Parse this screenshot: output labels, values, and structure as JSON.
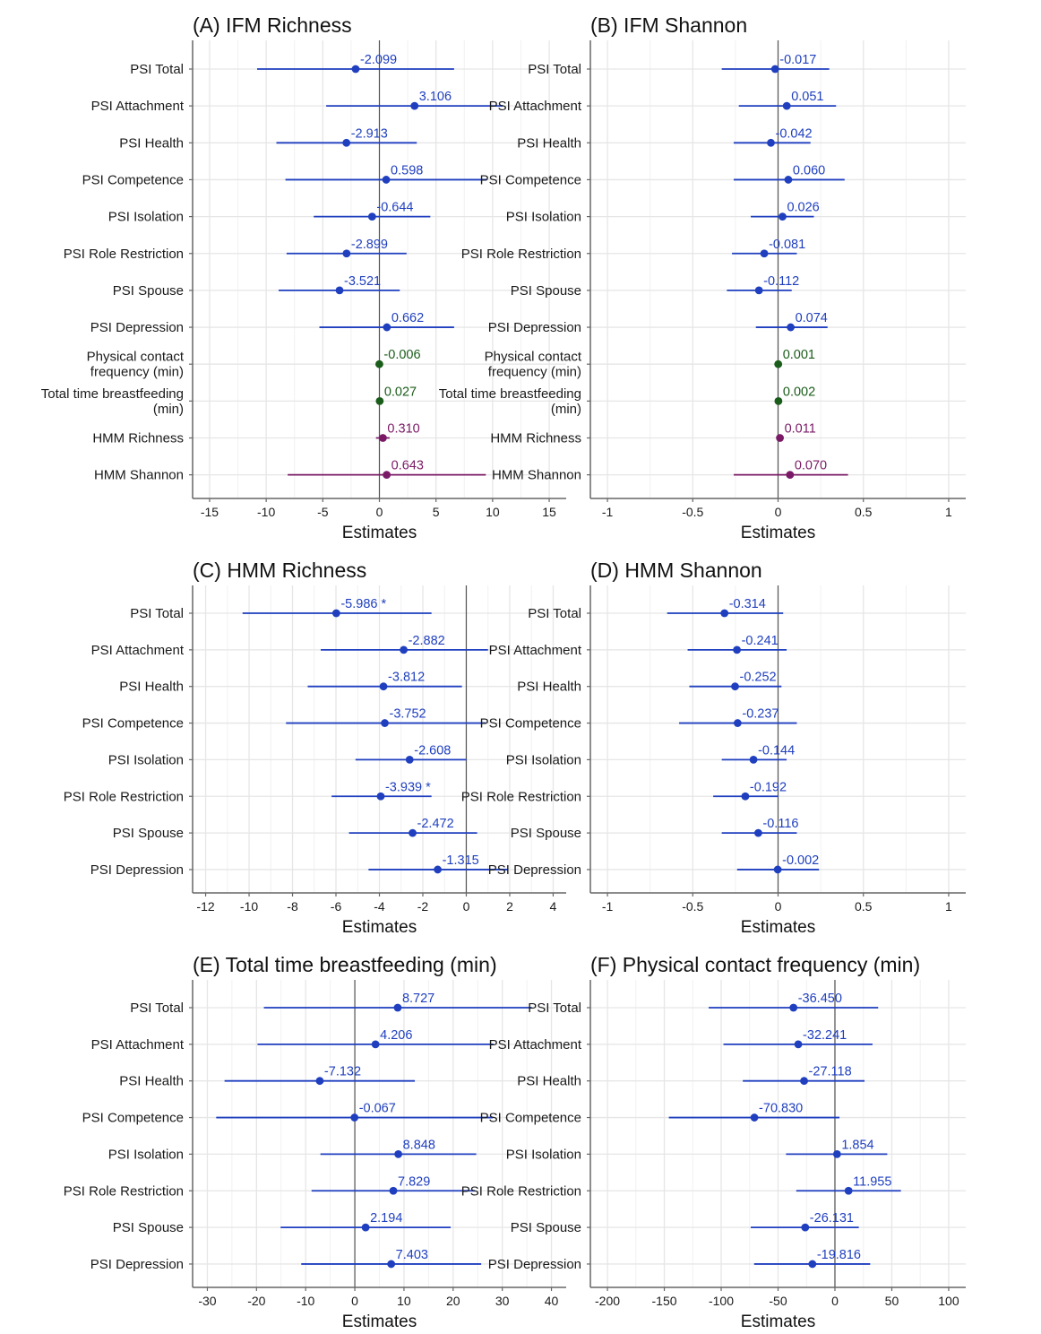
{
  "colors": {
    "psi": "#1f3fbf",
    "behavior": "#1a5c1a",
    "hmm": "#7a1a66",
    "grid": "#e6e6e6",
    "axis": "#666666",
    "zero_line": "#555555"
  },
  "chart_data": [
    {
      "type": "forest",
      "title": "(A) IFM Richness",
      "xlabel": "Estimates",
      "xlim": [
        -16.5,
        16.5
      ],
      "xticks": [
        -15,
        -10,
        -5,
        0,
        5,
        10,
        15
      ],
      "xtick_labels": [
        "-15",
        "-10",
        "-5",
        "0",
        "5",
        "10",
        "15"
      ],
      "rows": [
        {
          "label": "PSI Total",
          "estimate": -2.099,
          "ci": [
            -10.8,
            6.6
          ],
          "text": "-2.099",
          "group": "psi"
        },
        {
          "label": "PSI Attachment",
          "estimate": 3.106,
          "ci": [
            -4.7,
            10.9
          ],
          "text": "3.106",
          "group": "psi"
        },
        {
          "label": "PSI Health",
          "estimate": -2.913,
          "ci": [
            -9.1,
            3.3
          ],
          "text": "-2.913",
          "group": "psi"
        },
        {
          "label": "PSI Competence",
          "estimate": 0.598,
          "ci": [
            -8.3,
            9.5
          ],
          "text": "0.598",
          "group": "psi"
        },
        {
          "label": "PSI Isolation",
          "estimate": -0.644,
          "ci": [
            -5.8,
            4.5
          ],
          "text": "-0.644",
          "group": "psi"
        },
        {
          "label": "PSI Role Restriction",
          "estimate": -2.899,
          "ci": [
            -8.2,
            2.4
          ],
          "text": "-2.899",
          "group": "psi"
        },
        {
          "label": "PSI Spouse",
          "estimate": -3.521,
          "ci": [
            -8.9,
            1.8
          ],
          "text": "-3.521",
          "group": "psi"
        },
        {
          "label": "PSI Depression",
          "estimate": 0.662,
          "ci": [
            -5.3,
            6.6
          ],
          "text": "0.662",
          "group": "psi"
        },
        {
          "label": "Physical contact\nfrequency (min)",
          "estimate": -0.006,
          "ci": [
            -0.1,
            0.1
          ],
          "text": "-0.006",
          "group": "behavior"
        },
        {
          "label": "Total time breastfeeding\n(min)",
          "estimate": 0.027,
          "ci": [
            -0.1,
            0.15
          ],
          "text": "0.027",
          "group": "behavior"
        },
        {
          "label": "HMM Richness",
          "estimate": 0.31,
          "ci": [
            -0.3,
            0.9
          ],
          "text": "0.310",
          "group": "hmm"
        },
        {
          "label": "HMM Shannon",
          "estimate": 0.643,
          "ci": [
            -8.1,
            9.4
          ],
          "text": "0.643",
          "group": "hmm"
        }
      ]
    },
    {
      "type": "forest",
      "title": "(B) IFM Shannon",
      "xlabel": "Estimates",
      "xlim": [
        -1.1,
        1.1
      ],
      "xticks": [
        -1,
        -0.5,
        0,
        0.5,
        1
      ],
      "xtick_labels": [
        "-1",
        "-0.5",
        "0",
        "0.5",
        "1"
      ],
      "rows": [
        {
          "label": "PSI Total",
          "estimate": -0.017,
          "ci": [
            -0.33,
            0.3
          ],
          "text": "-0.017",
          "group": "psi"
        },
        {
          "label": "PSI Attachment",
          "estimate": 0.051,
          "ci": [
            -0.23,
            0.34
          ],
          "text": "0.051",
          "group": "psi"
        },
        {
          "label": "PSI Health",
          "estimate": -0.042,
          "ci": [
            -0.26,
            0.19
          ],
          "text": "-0.042",
          "group": "psi"
        },
        {
          "label": "PSI Competence",
          "estimate": 0.06,
          "ci": [
            -0.26,
            0.39
          ],
          "text": "0.060",
          "group": "psi"
        },
        {
          "label": "PSI Isolation",
          "estimate": 0.026,
          "ci": [
            -0.16,
            0.21
          ],
          "text": "0.026",
          "group": "psi"
        },
        {
          "label": "PSI Role Restriction",
          "estimate": -0.081,
          "ci": [
            -0.27,
            0.11
          ],
          "text": "-0.081",
          "group": "psi"
        },
        {
          "label": "PSI Spouse",
          "estimate": -0.112,
          "ci": [
            -0.3,
            0.08
          ],
          "text": "-0.112",
          "group": "psi"
        },
        {
          "label": "PSI Depression",
          "estimate": 0.074,
          "ci": [
            -0.13,
            0.29
          ],
          "text": "0.074",
          "group": "psi"
        },
        {
          "label": "Physical contact\nfrequency (min)",
          "estimate": 0.001,
          "ci": [
            -0.01,
            0.01
          ],
          "text": "0.001",
          "group": "behavior"
        },
        {
          "label": "Total time breastfeeding\n(min)",
          "estimate": 0.002,
          "ci": [
            -0.01,
            0.01
          ],
          "text": "0.002",
          "group": "behavior"
        },
        {
          "label": "HMM Richness",
          "estimate": 0.011,
          "ci": [
            0.0,
            0.03
          ],
          "text": "0.011",
          "group": "hmm"
        },
        {
          "label": "HMM Shannon",
          "estimate": 0.07,
          "ci": [
            -0.26,
            0.41
          ],
          "text": "0.070",
          "group": "hmm"
        }
      ]
    },
    {
      "type": "forest",
      "title": "(C) HMM Richness",
      "xlabel": "Estimates",
      "xlim": [
        -12.6,
        4.6
      ],
      "xticks": [
        -12,
        -10,
        -8,
        -6,
        -4,
        -2,
        0,
        2,
        4
      ],
      "xtick_labels": [
        "-12",
        "-10",
        "-8",
        "-6",
        "-4",
        "-2",
        "0",
        "2",
        "4"
      ],
      "rows": [
        {
          "label": "PSI Total",
          "estimate": -5.986,
          "ci": [
            -10.3,
            -1.6
          ],
          "text": "-5.986 *",
          "group": "psi"
        },
        {
          "label": "PSI Attachment",
          "estimate": -2.882,
          "ci": [
            -6.7,
            1.0
          ],
          "text": "-2.882",
          "group": "psi"
        },
        {
          "label": "PSI Health",
          "estimate": -3.812,
          "ci": [
            -7.3,
            -0.2
          ],
          "text": "-3.812",
          "group": "psi"
        },
        {
          "label": "PSI Competence",
          "estimate": -3.752,
          "ci": [
            -8.3,
            0.9
          ],
          "text": "-3.752",
          "group": "psi"
        },
        {
          "label": "PSI Isolation",
          "estimate": -2.608,
          "ci": [
            -5.1,
            0.0
          ],
          "text": "-2.608",
          "group": "psi"
        },
        {
          "label": "PSI Role Restriction",
          "estimate": -3.939,
          "ci": [
            -6.2,
            -1.6
          ],
          "text": "-3.939 *",
          "group": "psi"
        },
        {
          "label": "PSI Spouse",
          "estimate": -2.472,
          "ci": [
            -5.4,
            0.5
          ],
          "text": "-2.472",
          "group": "psi"
        },
        {
          "label": "PSI Depression",
          "estimate": -1.315,
          "ci": [
            -4.5,
            1.9
          ],
          "text": "-1.315",
          "group": "psi"
        }
      ]
    },
    {
      "type": "forest",
      "title": "(D) HMM Shannon",
      "xlabel": "Estimates",
      "xlim": [
        -1.1,
        1.1
      ],
      "xticks": [
        -1,
        -0.5,
        0,
        0.5,
        1
      ],
      "xtick_labels": [
        "-1",
        "-0.5",
        "0",
        "0.5",
        "1"
      ],
      "rows": [
        {
          "label": "PSI Total",
          "estimate": -0.314,
          "ci": [
            -0.65,
            0.03
          ],
          "text": "-0.314",
          "group": "psi"
        },
        {
          "label": "PSI Attachment",
          "estimate": -0.241,
          "ci": [
            -0.53,
            0.05
          ],
          "text": "-0.241",
          "group": "psi"
        },
        {
          "label": "PSI Health",
          "estimate": -0.252,
          "ci": [
            -0.52,
            0.02
          ],
          "text": "-0.252",
          "group": "psi"
        },
        {
          "label": "PSI Competence",
          "estimate": -0.237,
          "ci": [
            -0.58,
            0.11
          ],
          "text": "-0.237",
          "group": "psi"
        },
        {
          "label": "PSI Isolation",
          "estimate": -0.144,
          "ci": [
            -0.33,
            0.05
          ],
          "text": "-0.144",
          "group": "psi"
        },
        {
          "label": "PSI Role Restriction",
          "estimate": -0.192,
          "ci": [
            -0.38,
            0.0
          ],
          "text": "-0.192",
          "group": "psi"
        },
        {
          "label": "PSI Spouse",
          "estimate": -0.116,
          "ci": [
            -0.33,
            0.11
          ],
          "text": "-0.116",
          "group": "psi"
        },
        {
          "label": "PSI Depression",
          "estimate": -0.002,
          "ci": [
            -0.24,
            0.24
          ],
          "text": "-0.002",
          "group": "psi"
        }
      ]
    },
    {
      "type": "forest",
      "title": "(E) Total time breastfeeding (min)",
      "xlabel": "Estimates",
      "xlim": [
        -33,
        43
      ],
      "xticks": [
        -30,
        -20,
        -10,
        0,
        10,
        20,
        30,
        40
      ],
      "xtick_labels": [
        "-30",
        "-20",
        "-10",
        "0",
        "10",
        "20",
        "30",
        "40"
      ],
      "rows": [
        {
          "label": "PSI Total",
          "estimate": 8.727,
          "ci": [
            -18.5,
            36.0
          ],
          "text": "8.727",
          "group": "psi"
        },
        {
          "label": "PSI Attachment",
          "estimate": 4.206,
          "ci": [
            -19.8,
            28.2
          ],
          "text": "4.206",
          "group": "psi"
        },
        {
          "label": "PSI Health",
          "estimate": -7.132,
          "ci": [
            -26.5,
            12.2
          ],
          "text": "-7.132",
          "group": "psi"
        },
        {
          "label": "PSI Competence",
          "estimate": -0.067,
          "ci": [
            -28.2,
            28.1
          ],
          "text": "-0.067",
          "group": "psi"
        },
        {
          "label": "PSI Isolation",
          "estimate": 8.848,
          "ci": [
            -7.0,
            24.7
          ],
          "text": "8.848",
          "group": "psi"
        },
        {
          "label": "PSI Role Restriction",
          "estimate": 7.829,
          "ci": [
            -8.8,
            24.4
          ],
          "text": "7.829",
          "group": "psi"
        },
        {
          "label": "PSI Spouse",
          "estimate": 2.194,
          "ci": [
            -15.1,
            19.5
          ],
          "text": "2.194",
          "group": "psi"
        },
        {
          "label": "PSI Depression",
          "estimate": 7.403,
          "ci": [
            -10.9,
            25.7
          ],
          "text": "7.403",
          "group": "psi"
        }
      ]
    },
    {
      "type": "forest",
      "title": "(F) Physical contact frequency (min)",
      "xlabel": "Estimates",
      "xlim": [
        -215,
        115
      ],
      "xticks": [
        -200,
        -150,
        -100,
        -50,
        0,
        50,
        100
      ],
      "xtick_labels": [
        "-200",
        "-150",
        "-100",
        "-50",
        "0",
        "50",
        "100"
      ],
      "rows": [
        {
          "label": "PSI Total",
          "estimate": -36.45,
          "ci": [
            -111,
            38
          ],
          "text": "-36.450",
          "group": "psi"
        },
        {
          "label": "PSI Attachment",
          "estimate": -32.241,
          "ci": [
            -98,
            33
          ],
          "text": "-32.241",
          "group": "psi"
        },
        {
          "label": "PSI Health",
          "estimate": -27.118,
          "ci": [
            -81,
            26
          ],
          "text": "-27.118",
          "group": "psi"
        },
        {
          "label": "PSI Competence",
          "estimate": -70.83,
          "ci": [
            -146,
            4
          ],
          "text": "-70.830",
          "group": "psi"
        },
        {
          "label": "PSI Isolation",
          "estimate": 1.854,
          "ci": [
            -43,
            46
          ],
          "text": "1.854",
          "group": "psi"
        },
        {
          "label": "PSI Role Restriction",
          "estimate": 11.955,
          "ci": [
            -34,
            58
          ],
          "text": "11.955",
          "group": "psi"
        },
        {
          "label": "PSI Spouse",
          "estimate": -26.131,
          "ci": [
            -74,
            21
          ],
          "text": "-26.131",
          "group": "psi"
        },
        {
          "label": "PSI Depression",
          "estimate": -19.816,
          "ci": [
            -71,
            31
          ],
          "text": "-19.816",
          "group": "psi"
        }
      ]
    }
  ]
}
